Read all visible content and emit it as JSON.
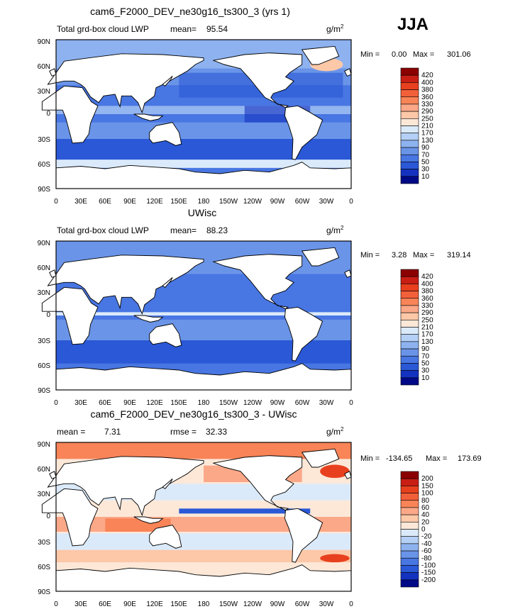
{
  "season": "JJA",
  "units_base": "g/m",
  "units_exp": "2",
  "lon_labels": [
    "0",
    "30E",
    "60E",
    "90E",
    "120E",
    "150E",
    "180",
    "150W",
    "120W",
    "90W",
    "60W",
    "30W",
    "0"
  ],
  "lat_labels": [
    "90N",
    "60N",
    "30N",
    "0",
    "30S",
    "60S",
    "90S"
  ],
  "panels": [
    {
      "title": "cam6_F2000_DEV_ne30g16_ts300_3 (yrs 1)",
      "left_label": "Total grd-box cloud LWP",
      "mean_label": "mean=",
      "mean_value": "95.54",
      "min_label": "Min =",
      "min_value": "0.00",
      "max_label": "Max =",
      "max_value": "301.06",
      "kind": "abs"
    },
    {
      "title": "UWisc",
      "left_label": "Total grd-box cloud LWP",
      "mean_label": "mean=",
      "mean_value": "88.23",
      "min_label": "Min =",
      "min_value": "3.28",
      "max_label": "Max =",
      "max_value": "319.14",
      "kind": "abs"
    },
    {
      "title": "cam6_F2000_DEV_ne30g16_ts300_3 - UWisc",
      "left_label": "mean =",
      "mean_label": "",
      "mean_value": "7.31",
      "rmse_label": "rmse =",
      "rmse_value": "32.33",
      "min_label": "Min =",
      "min_value": "-134.65",
      "max_label": "Max =",
      "max_value": "173.69",
      "kind": "diff"
    }
  ],
  "abs_colorbar": {
    "labels": [
      "420",
      "400",
      "380",
      "360",
      "330",
      "290",
      "250",
      "210",
      "170",
      "130",
      "90",
      "70",
      "50",
      "30",
      "10"
    ],
    "colors": [
      "#8b0000",
      "#c81e14",
      "#e8401e",
      "#f2603a",
      "#f88458",
      "#fba888",
      "#fdc8a8",
      "#fde8d8",
      "#dbeafb",
      "#b4d0f6",
      "#8db2ef",
      "#6a94e8",
      "#4876e2",
      "#2a58d6",
      "#1432c0",
      "#000a86"
    ]
  },
  "diff_colorbar": {
    "labels": [
      "200",
      "150",
      "100",
      "80",
      "60",
      "40",
      "20",
      "0",
      "-20",
      "-40",
      "-60",
      "-80",
      "-100",
      "-150",
      "-200"
    ],
    "colors": [
      "#8b0000",
      "#c81e14",
      "#e8401e",
      "#f2603a",
      "#f88458",
      "#fba888",
      "#fdc8a8",
      "#fde8d8",
      "#dbeafb",
      "#b4d0f6",
      "#8db2ef",
      "#6a94e8",
      "#4876e2",
      "#2a58d6",
      "#1432c0",
      "#000a86"
    ]
  }
}
